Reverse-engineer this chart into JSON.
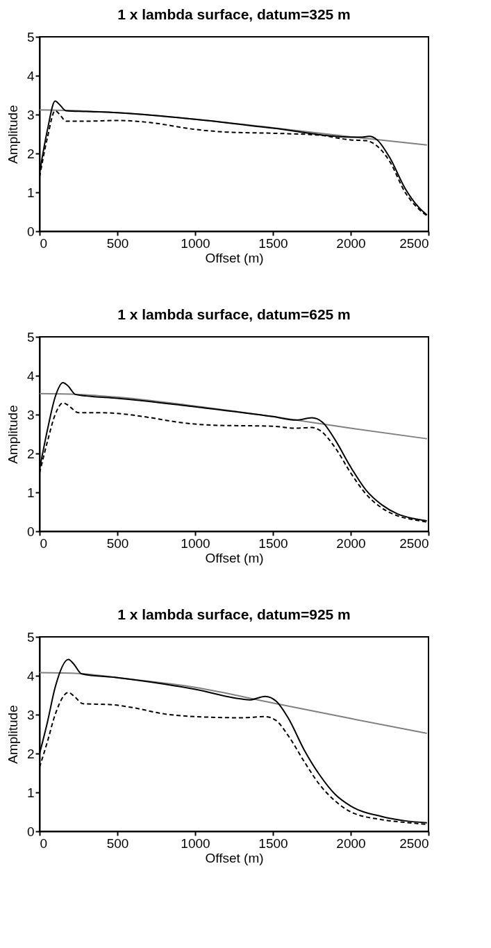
{
  "chart_data": [
    {
      "type": "line",
      "title": "1 x lambda surface, datum=325 m",
      "xlabel": "Offset (m)",
      "ylabel": "Amplitude",
      "xlim": [
        0,
        2500
      ],
      "xticks": [
        0,
        500,
        1000,
        1500,
        2000,
        2500
      ],
      "ylim": [
        0,
        5
      ],
      "yticks": [
        0,
        1,
        2,
        3,
        4,
        5
      ],
      "grid": false,
      "series": [
        {
          "color": "#808080",
          "line_style": "solid",
          "x": [
            0,
            250,
            500,
            1000,
            1500,
            2000,
            2490
          ],
          "values": [
            3.12,
            3.1,
            3.05,
            2.88,
            2.66,
            2.43,
            2.22
          ]
        },
        {
          "color": "#000000",
          "line_style": "solid",
          "x": [
            0,
            50,
            100,
            130,
            170,
            300,
            500,
            1000,
            1500,
            2000,
            2060,
            2120,
            2170,
            2250,
            2350,
            2430,
            2490
          ],
          "values": [
            1.5,
            2.6,
            3.35,
            3.25,
            3.1,
            3.08,
            3.05,
            2.88,
            2.65,
            2.42,
            2.42,
            2.44,
            2.35,
            1.9,
            1.1,
            0.65,
            0.42
          ]
        },
        {
          "color": "#000000",
          "line_style": "dashed",
          "x": [
            0,
            50,
            100,
            130,
            170,
            300,
            500,
            700,
            1000,
            1200,
            1500,
            1800,
            2000,
            2100,
            2150,
            2250,
            2350,
            2430,
            2490
          ],
          "values": [
            1.4,
            2.4,
            3.1,
            3.0,
            2.83,
            2.83,
            2.85,
            2.8,
            2.62,
            2.55,
            2.52,
            2.47,
            2.35,
            2.33,
            2.25,
            1.8,
            1.0,
            0.6,
            0.4
          ]
        }
      ]
    },
    {
      "type": "line",
      "title": "1 x lambda surface, datum=625 m",
      "xlabel": "Offset (m)",
      "ylabel": "Amplitude",
      "xlim": [
        0,
        2500
      ],
      "xticks": [
        0,
        500,
        1000,
        1500,
        2000,
        2500
      ],
      "ylim": [
        0,
        5
      ],
      "yticks": [
        0,
        1,
        2,
        3,
        4,
        5
      ],
      "grid": false,
      "series": [
        {
          "color": "#808080",
          "line_style": "solid",
          "x": [
            0,
            250,
            500,
            1000,
            1500,
            2000,
            2490
          ],
          "values": [
            3.54,
            3.52,
            3.45,
            3.22,
            2.95,
            2.65,
            2.38
          ]
        },
        {
          "color": "#000000",
          "line_style": "solid",
          "x": [
            0,
            50,
            100,
            150,
            180,
            230,
            300,
            500,
            1000,
            1500,
            1650,
            1750,
            1820,
            1900,
            2000,
            2100,
            2200,
            2300,
            2400,
            2490
          ],
          "values": [
            1.6,
            2.6,
            3.45,
            3.82,
            3.75,
            3.52,
            3.48,
            3.42,
            3.2,
            2.95,
            2.86,
            2.92,
            2.8,
            2.35,
            1.65,
            1.05,
            0.68,
            0.45,
            0.33,
            0.27
          ]
        },
        {
          "color": "#000000",
          "line_style": "dashed",
          "x": [
            0,
            50,
            100,
            150,
            180,
            250,
            400,
            500,
            700,
            900,
            1100,
            1500,
            1650,
            1750,
            1800,
            1900,
            2000,
            2100,
            2200,
            2300,
            2400,
            2490
          ],
          "values": [
            1.5,
            2.3,
            3.0,
            3.3,
            3.25,
            3.05,
            3.05,
            3.03,
            2.93,
            2.8,
            2.73,
            2.7,
            2.65,
            2.67,
            2.6,
            2.15,
            1.5,
            0.95,
            0.6,
            0.4,
            0.3,
            0.24
          ]
        }
      ]
    },
    {
      "type": "line",
      "title": "1 x lambda surface, datum=925 m",
      "xlabel": "Offset (m)",
      "ylabel": "Amplitude",
      "xlim": [
        0,
        2500
      ],
      "xticks": [
        0,
        500,
        1000,
        1500,
        2000,
        2500
      ],
      "ylim": [
        0,
        5
      ],
      "yticks": [
        0,
        1,
        2,
        3,
        4,
        5
      ],
      "grid": false,
      "series": [
        {
          "color": "#808080",
          "line_style": "solid",
          "x": [
            0,
            250,
            500,
            1000,
            1500,
            2000,
            2490
          ],
          "values": [
            4.08,
            4.06,
            3.95,
            3.7,
            3.3,
            2.9,
            2.52
          ]
        },
        {
          "color": "#000000",
          "line_style": "solid",
          "x": [
            0,
            50,
            100,
            185,
            220,
            270,
            500,
            1000,
            1300,
            1350,
            1450,
            1520,
            1600,
            1700,
            1800,
            1900,
            2000,
            2200,
            2350,
            2490
          ],
          "values": [
            2.0,
            2.8,
            3.7,
            4.42,
            4.3,
            4.05,
            3.95,
            3.65,
            3.4,
            3.38,
            3.47,
            3.35,
            2.9,
            2.1,
            1.45,
            0.95,
            0.65,
            0.38,
            0.27,
            0.22
          ]
        },
        {
          "color": "#000000",
          "line_style": "dashed",
          "x": [
            0,
            50,
            100,
            185,
            220,
            280,
            450,
            600,
            800,
            1000,
            1300,
            1450,
            1520,
            1600,
            1700,
            1800,
            1900,
            2000,
            2200,
            2350,
            2490
          ],
          "values": [
            1.65,
            2.3,
            3.0,
            3.57,
            3.48,
            3.28,
            3.26,
            3.18,
            3.02,
            2.95,
            2.92,
            2.95,
            2.85,
            2.45,
            1.8,
            1.2,
            0.78,
            0.5,
            0.3,
            0.23,
            0.18
          ]
        }
      ]
    }
  ]
}
